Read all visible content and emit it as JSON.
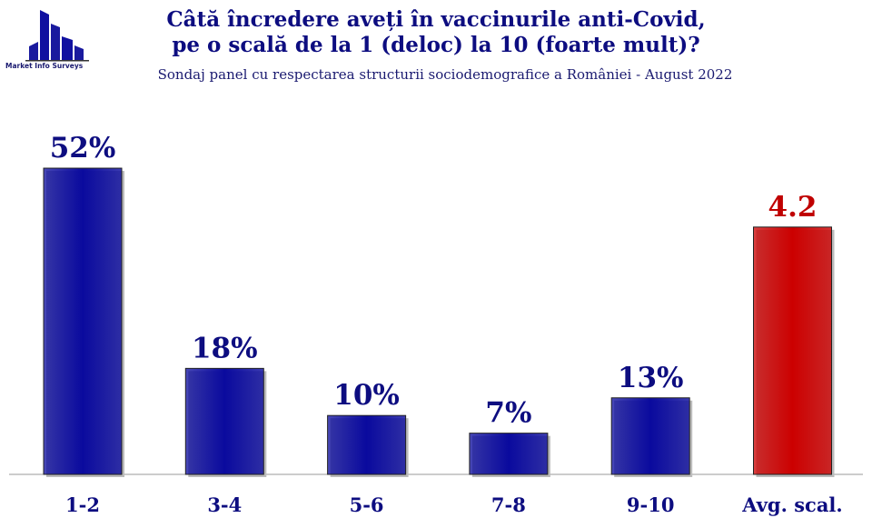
{
  "logo": {
    "text": "Market Info Surveys"
  },
  "chart_data": {
    "type": "bar",
    "title_line1": "Câtă încredere aveți în vaccinurile anti-Covid,",
    "title_line2": "pe o scală de la 1 (deloc) la 10 (foarte mult)?",
    "subtitle": "Sondaj panel cu respectarea structurii sociodemografice a României - August 2022",
    "categories": [
      "1-2",
      "3-4",
      "5-6",
      "7-8",
      "9-10",
      "Avg. scal."
    ],
    "values": [
      52,
      18,
      10,
      7,
      13,
      4.2
    ],
    "data_labels": [
      "52%",
      "18%",
      "10%",
      "7%",
      "13%",
      "4.2"
    ],
    "colors": [
      "#0a0a9e",
      "#0a0a9e",
      "#0a0a9e",
      "#0a0a9e",
      "#0a0a9e",
      "#cc0000"
    ],
    "label_colors": [
      "#0d0d80",
      "#0d0d80",
      "#0d0d80",
      "#0d0d80",
      "#0d0d80",
      "#c00000"
    ],
    "grid": false
  }
}
